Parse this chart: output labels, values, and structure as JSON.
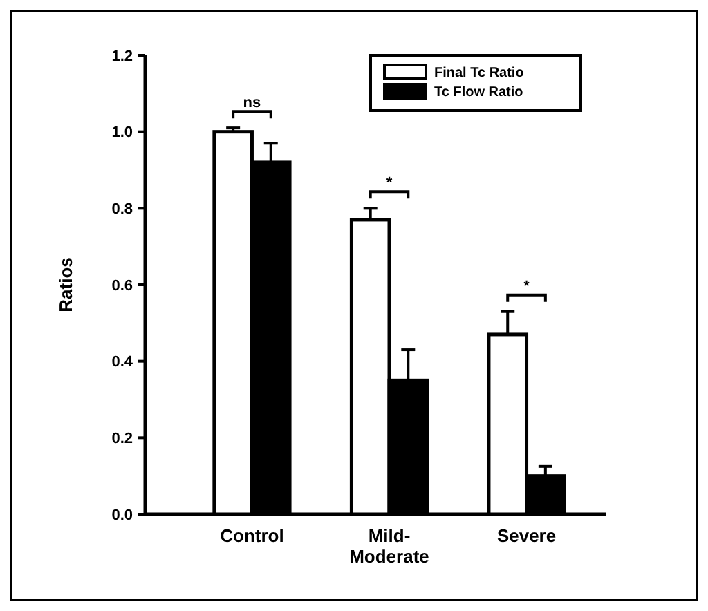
{
  "chart_data": {
    "type": "bar",
    "ylabel": "Ratios",
    "categories": [
      "Control",
      "Mild-Moderate",
      "Severe"
    ],
    "ylim": [
      0,
      1.2
    ],
    "yticks": [
      {
        "value": 0,
        "label": "0.0"
      },
      {
        "value": 0.2,
        "label": "0.2"
      },
      {
        "value": 0.4,
        "label": "0.4"
      },
      {
        "value": 0.6,
        "label": "0.6"
      },
      {
        "value": 0.8,
        "label": "0.8"
      },
      {
        "value": 1,
        "label": "1.0"
      },
      {
        "value": 1.2,
        "label": "1.2"
      }
    ],
    "legend": "top right",
    "grid": false,
    "series": [
      {
        "name": "Final Tc Ratio",
        "color": "#ffffff",
        "values": [
          1.0,
          0.77,
          0.47
        ],
        "errors": [
          [
            1.0,
            1.01
          ],
          [
            0.77,
            0.8
          ],
          [
            0.47,
            0.53
          ]
        ]
      },
      {
        "name": "Tc Flow Ratio",
        "color": "#000000",
        "values": [
          0.92,
          0.35,
          0.1
        ],
        "errors": [
          [
            0.92,
            0.97
          ],
          [
            0.35,
            0.43
          ],
          [
            0.1,
            0.125
          ]
        ]
      }
    ],
    "annotations": [
      "ns",
      "*",
      "*"
    ]
  }
}
